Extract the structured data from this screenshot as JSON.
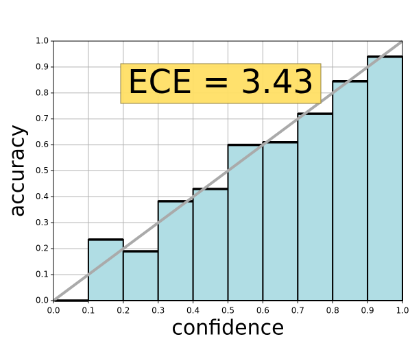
{
  "chart_data": {
    "type": "histogram",
    "xlabel": "confidence",
    "ylabel": "accuracy",
    "annotation": "ECE = 3.43",
    "bins": [
      0,
      0.1,
      0.2,
      0.3,
      0.4,
      0.5,
      0.6,
      0.7,
      0.8,
      0.9,
      1
    ],
    "values": [
      0,
      0.235,
      0.19,
      0.383,
      0.43,
      0.6,
      0.61,
      0.72,
      0.845,
      0.94
    ],
    "color": "#b0dde4",
    "edge_color": "#000000",
    "identity_line": true,
    "identity_color": "#aaaaaa",
    "xlim": [
      0,
      1
    ],
    "ylim": [
      0,
      1
    ],
    "xticks": [
      {
        "value": 0,
        "label": "0.0"
      },
      0.1,
      0.2,
      0.3,
      0.4,
      0.5,
      0.6,
      0.7,
      0.8,
      0.9,
      {
        "value": 1,
        "label": "1.0"
      }
    ],
    "yticks": [
      {
        "value": 0,
        "label": "0.0"
      },
      0.1,
      0.2,
      0.3,
      0.4,
      0.5,
      0.6,
      0.7,
      0.8,
      0.9,
      {
        "value": 1,
        "label": "1.0"
      }
    ],
    "grid": true
  }
}
